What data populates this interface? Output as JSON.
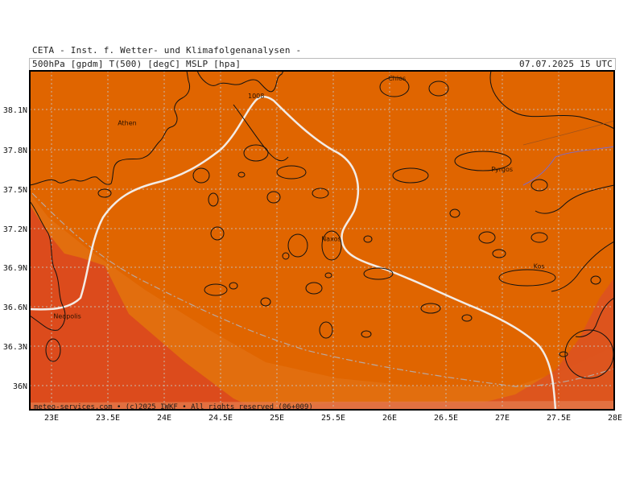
{
  "header": {
    "line1": "CETA - Inst. f. Wetter- und Klimafolgenanalysen -",
    "line2": "500hPa [gpdm] T(500) [degC] MSLP [hpa]",
    "datetime": "07.07.2025 15 UTC"
  },
  "map": {
    "lon_range": [
      22.8,
      28.0
    ],
    "lat_range": [
      35.8,
      38.1
    ],
    "lat_labels": [
      "38.1N",
      "37.8N",
      "37.5N",
      "37.2N",
      "36.9N",
      "36.6N",
      "36.3N",
      "36N"
    ],
    "lon_labels": [
      "23E",
      "23.5E",
      "24E",
      "24.5E",
      "25E",
      "25.5E",
      "26E",
      "26.5E",
      "27E",
      "27.5E",
      "28E"
    ],
    "places": [
      {
        "name": "Athen",
        "lon": 23.73,
        "lat": 37.98
      },
      {
        "name": "Chios",
        "lon": 26.13,
        "lat": 38.37
      },
      {
        "name": "Pyrgos",
        "lon": 26.93,
        "lat": 37.63
      },
      {
        "name": "Naxos",
        "lon": 25.38,
        "lat": 37.1
      },
      {
        "name": "Kos",
        "lon": 27.29,
        "lat": 36.89
      },
      {
        "name": "Neapolis",
        "lon": 23.06,
        "lat": 36.51
      }
    ],
    "isobar_label": "1008",
    "colors": {
      "field_main": "#e06500",
      "field_light": "#e17a1c",
      "field_warm": "#dc4b1c",
      "grid": "#c7b5a7",
      "isobar": "#f3ece6",
      "coast": "#111111"
    }
  },
  "footer": {
    "text": "meteo-services.com • (c)2025 IWKF • All rights reserved (06+009)"
  }
}
